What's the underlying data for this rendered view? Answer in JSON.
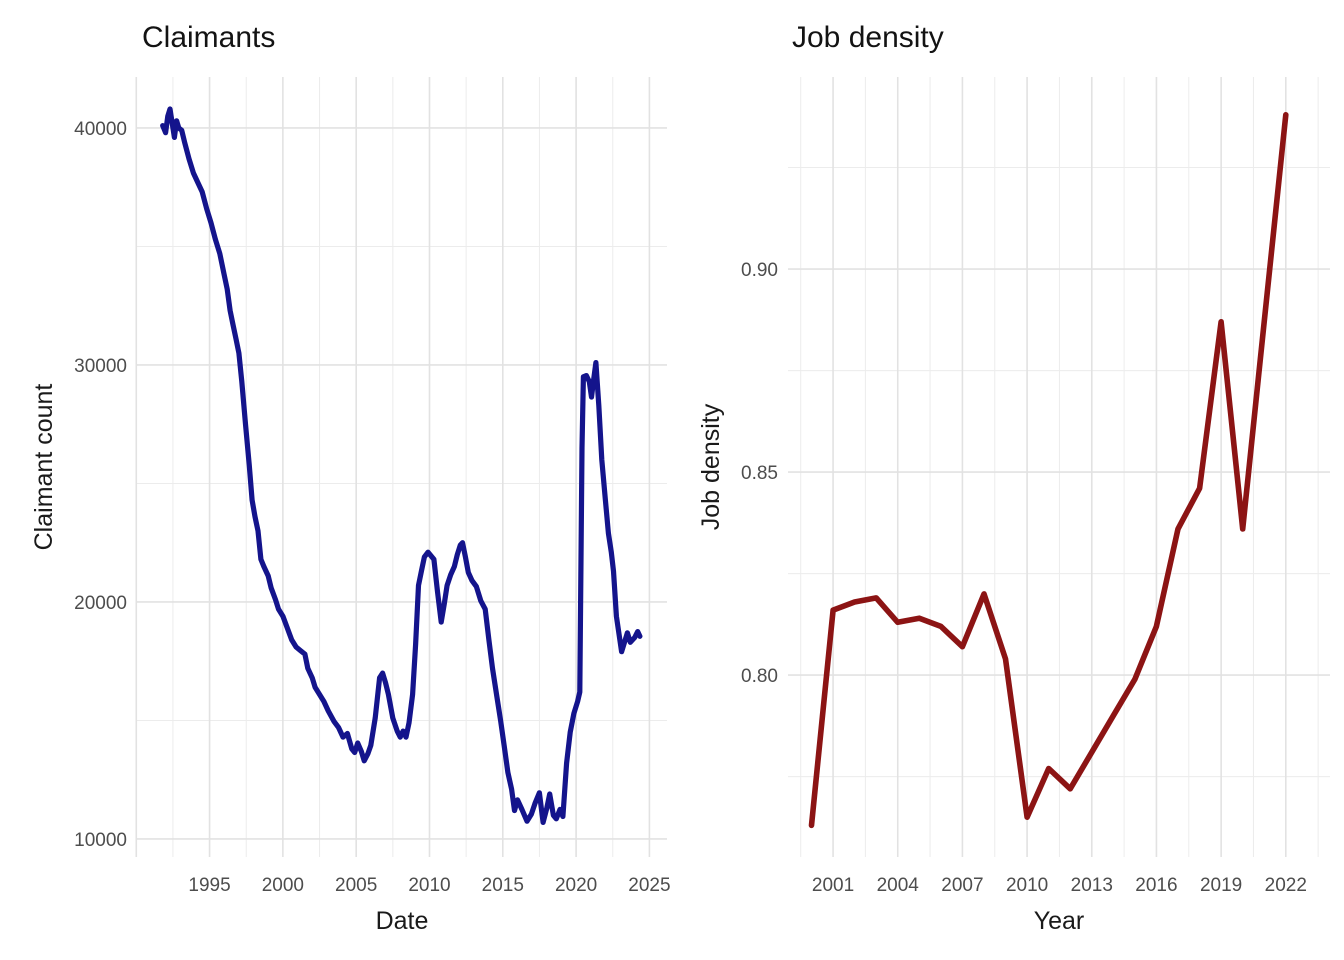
{
  "chart_data": [
    {
      "type": "line",
      "title": "Claimants",
      "xlabel": "Date",
      "ylabel": "Claimant count",
      "line_color": "#14148c",
      "line_width": 5.2,
      "grid": true,
      "legend": "none",
      "xlim": [
        1990.05,
        2026.2
      ],
      "ylim": [
        9240,
        42150
      ],
      "x_ticks": {
        "values": [
          1995,
          2000,
          2005,
          2010,
          2015,
          2020,
          2025
        ],
        "labels": [
          "1995",
          "2000",
          "2005",
          "2010",
          "2015",
          "2020",
          "2025"
        ]
      },
      "y_ticks": {
        "values": [
          10000,
          20000,
          30000,
          40000
        ],
        "labels": [
          "10000",
          "20000",
          "30000",
          "40000"
        ]
      },
      "x_grid_major_extra": [
        1990
      ],
      "x_grid_minor": [
        1992.5,
        1997.5,
        2002.5,
        2007.5,
        2012.5,
        2017.5,
        2022.5
      ],
      "y_grid_minor": [
        15000,
        25000,
        35000
      ],
      "series": [
        {
          "name": "claimant-count",
          "points": [
            [
              1991.8,
              40100
            ],
            [
              1992.0,
              39800
            ],
            [
              1992.15,
              40500
            ],
            [
              1992.3,
              40800
            ],
            [
              1992.45,
              40200
            ],
            [
              1992.6,
              39600
            ],
            [
              1992.75,
              40300
            ],
            [
              1992.9,
              40000
            ],
            [
              1993.1,
              39900
            ],
            [
              1993.3,
              39400
            ],
            [
              1993.6,
              38700
            ],
            [
              1993.9,
              38100
            ],
            [
              1994.2,
              37700
            ],
            [
              1994.5,
              37300
            ],
            [
              1994.8,
              36600
            ],
            [
              1995.1,
              36000
            ],
            [
              1995.4,
              35300
            ],
            [
              1995.7,
              34700
            ],
            [
              1996.0,
              33800
            ],
            [
              1996.2,
              33200
            ],
            [
              1996.4,
              32300
            ],
            [
              1996.6,
              31700
            ],
            [
              1996.8,
              31100
            ],
            [
              1997.0,
              30500
            ],
            [
              1997.2,
              29300
            ],
            [
              1997.45,
              27500
            ],
            [
              1997.7,
              25800
            ],
            [
              1997.9,
              24300
            ],
            [
              1998.1,
              23600
            ],
            [
              1998.3,
              23000
            ],
            [
              1998.5,
              21800
            ],
            [
              1998.7,
              21500
            ],
            [
              1999.0,
              21100
            ],
            [
              1999.2,
              20600
            ],
            [
              1999.5,
              20100
            ],
            [
              1999.7,
              19700
            ],
            [
              2000.0,
              19400
            ],
            [
              2000.3,
              18900
            ],
            [
              2000.6,
              18400
            ],
            [
              2000.9,
              18100
            ],
            [
              2001.2,
              17950
            ],
            [
              2001.5,
              17800
            ],
            [
              2001.7,
              17200
            ],
            [
              2002.0,
              16800
            ],
            [
              2002.2,
              16400
            ],
            [
              2002.5,
              16100
            ],
            [
              2002.8,
              15800
            ],
            [
              2003.1,
              15400
            ],
            [
              2003.5,
              14950
            ],
            [
              2003.8,
              14700
            ],
            [
              2004.1,
              14300
            ],
            [
              2004.4,
              14450
            ],
            [
              2004.7,
              13800
            ],
            [
              2004.9,
              13650
            ],
            [
              2005.1,
              14050
            ],
            [
              2005.35,
              13700
            ],
            [
              2005.55,
              13300
            ],
            [
              2005.8,
              13600
            ],
            [
              2006.0,
              13950
            ],
            [
              2006.3,
              15100
            ],
            [
              2006.6,
              16800
            ],
            [
              2006.8,
              17000
            ],
            [
              2007.0,
              16600
            ],
            [
              2007.2,
              16100
            ],
            [
              2007.5,
              15100
            ],
            [
              2007.8,
              14550
            ],
            [
              2008.0,
              14300
            ],
            [
              2008.2,
              14550
            ],
            [
              2008.4,
              14300
            ],
            [
              2008.6,
              14900
            ],
            [
              2008.85,
              16100
            ],
            [
              2009.05,
              18200
            ],
            [
              2009.25,
              20700
            ],
            [
              2009.45,
              21300
            ],
            [
              2009.65,
              21900
            ],
            [
              2009.9,
              22100
            ],
            [
              2010.1,
              21950
            ],
            [
              2010.3,
              21800
            ],
            [
              2010.55,
              20400
            ],
            [
              2010.8,
              19150
            ],
            [
              2011.0,
              19900
            ],
            [
              2011.2,
              20700
            ],
            [
              2011.45,
              21150
            ],
            [
              2011.7,
              21500
            ],
            [
              2011.9,
              22000
            ],
            [
              2012.1,
              22400
            ],
            [
              2012.25,
              22500
            ],
            [
              2012.45,
              21900
            ],
            [
              2012.65,
              21250
            ],
            [
              2012.9,
              20900
            ],
            [
              2013.2,
              20650
            ],
            [
              2013.5,
              20050
            ],
            [
              2013.8,
              19700
            ],
            [
              2014.05,
              18400
            ],
            [
              2014.3,
              17200
            ],
            [
              2014.6,
              16000
            ],
            [
              2014.85,
              15000
            ],
            [
              2015.1,
              13900
            ],
            [
              2015.35,
              12800
            ],
            [
              2015.6,
              12100
            ],
            [
              2015.8,
              11200
            ],
            [
              2016.0,
              11650
            ],
            [
              2016.3,
              11250
            ],
            [
              2016.65,
              10750
            ],
            [
              2016.95,
              11050
            ],
            [
              2017.2,
              11500
            ],
            [
              2017.5,
              11950
            ],
            [
              2017.75,
              10700
            ],
            [
              2018.0,
              11300
            ],
            [
              2018.2,
              11900
            ],
            [
              2018.45,
              11000
            ],
            [
              2018.65,
              10850
            ],
            [
              2018.9,
              11250
            ],
            [
              2019.1,
              10950
            ],
            [
              2019.35,
              13200
            ],
            [
              2019.6,
              14500
            ],
            [
              2019.85,
              15300
            ],
            [
              2020.1,
              15800
            ],
            [
              2020.25,
              16200
            ],
            [
              2020.4,
              26500
            ],
            [
              2020.5,
              29500
            ],
            [
              2020.7,
              29550
            ],
            [
              2020.9,
              29300
            ],
            [
              2021.05,
              28650
            ],
            [
              2021.2,
              29400
            ],
            [
              2021.35,
              30100
            ],
            [
              2021.55,
              28300
            ],
            [
              2021.75,
              26000
            ],
            [
              2022.0,
              24300
            ],
            [
              2022.2,
              22900
            ],
            [
              2022.4,
              22100
            ],
            [
              2022.55,
              21300
            ],
            [
              2022.75,
              19400
            ],
            [
              2023.1,
              17900
            ],
            [
              2023.5,
              18700
            ],
            [
              2023.7,
              18300
            ],
            [
              2024.0,
              18500
            ],
            [
              2024.2,
              18750
            ],
            [
              2024.35,
              18550
            ]
          ]
        }
      ]
    },
    {
      "type": "line",
      "title": "Job density",
      "xlabel": "Year",
      "ylabel": "Job density",
      "line_color": "#8c1414",
      "line_width": 5.6,
      "grid": true,
      "legend": "none",
      "xlim": [
        1998.91,
        2024.05
      ],
      "ylim": [
        0.7552,
        0.9473
      ],
      "x_ticks": {
        "values": [
          2001,
          2004,
          2007,
          2010,
          2013,
          2016,
          2019,
          2022
        ],
        "labels": [
          "2001",
          "2004",
          "2007",
          "2010",
          "2013",
          "2016",
          "2019",
          "2022"
        ]
      },
      "y_ticks": {
        "values": [
          0.8,
          0.85,
          0.9
        ],
        "labels": [
          "0.80",
          "0.85",
          "0.90"
        ]
      },
      "x_grid_major_extra": [],
      "x_grid_minor": [
        1999.5,
        2002.5,
        2005.5,
        2008.5,
        2011.5,
        2014.5,
        2017.5,
        2020.5,
        2023.5
      ],
      "y_grid_minor": [
        0.775,
        0.825,
        0.875,
        0.925
      ],
      "series": [
        {
          "name": "job-density",
          "points": [
            [
              2000,
              0.763
            ],
            [
              2001,
              0.816
            ],
            [
              2002,
              0.818
            ],
            [
              2003,
              0.819
            ],
            [
              2004,
              0.813
            ],
            [
              2005,
              0.814
            ],
            [
              2006,
              0.812
            ],
            [
              2007,
              0.807
            ],
            [
              2008,
              0.82
            ],
            [
              2009,
              0.804
            ],
            [
              2010,
              0.765
            ],
            [
              2011,
              0.777
            ],
            [
              2012,
              0.772
            ],
            [
              2013,
              0.781
            ],
            [
              2014,
              0.79
            ],
            [
              2015,
              0.799
            ],
            [
              2016,
              0.812
            ],
            [
              2017,
              0.836
            ],
            [
              2018,
              0.846
            ],
            [
              2019,
              0.887
            ],
            [
              2020,
              0.836
            ],
            [
              2021,
              0.887
            ],
            [
              2022,
              0.938
            ]
          ]
        }
      ]
    }
  ],
  "style": {
    "grid_major_color": "#e2e2e2",
    "grid_minor_color": "#ececec",
    "tick_label_color": "#4d4d4d",
    "tick_label_size": 19
  }
}
